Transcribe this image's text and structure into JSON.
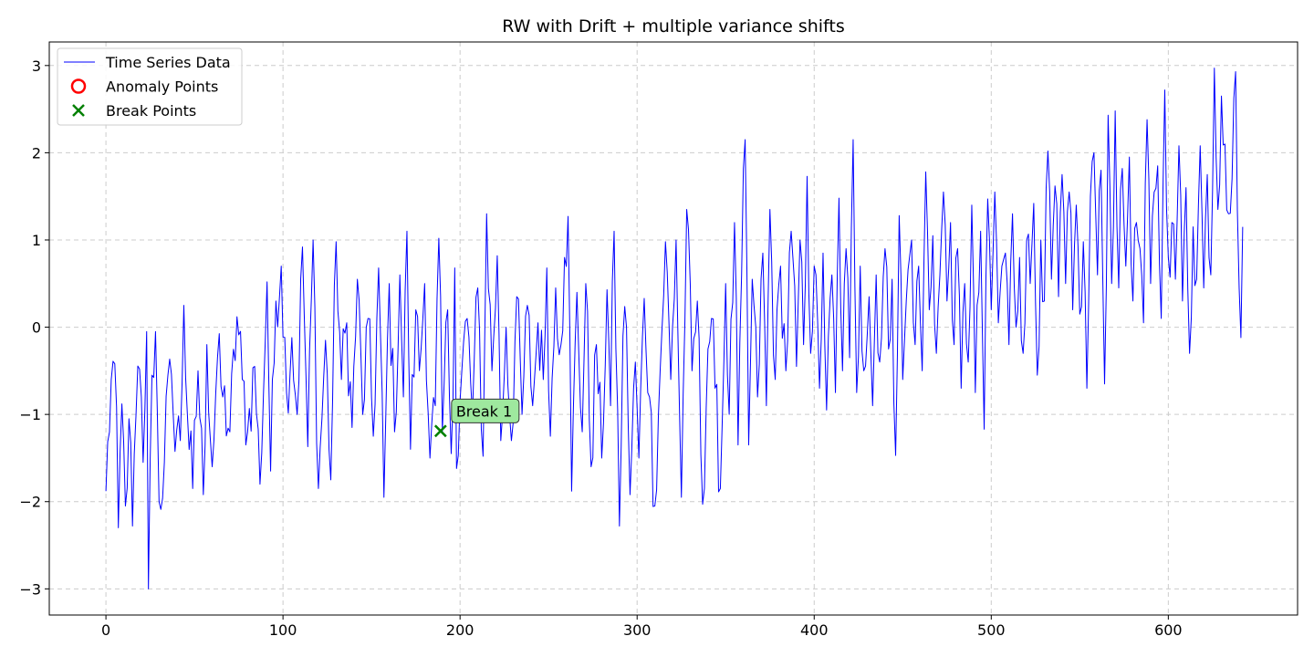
{
  "chart_data": {
    "type": "line",
    "title": "RW with Drift + multiple variance shifts",
    "xlabel": "",
    "ylabel": "",
    "xlim": [
      -32,
      673
    ],
    "ylim": [
      -3.3,
      3.27
    ],
    "xticks": [
      0,
      100,
      200,
      300,
      400,
      500,
      600
    ],
    "yticks": [
      -3,
      -2,
      -1,
      0,
      1,
      2,
      3
    ],
    "ytick_labels": [
      "−3",
      "−2",
      "−1",
      "0",
      "1",
      "2",
      "3"
    ],
    "grid": true,
    "legend_position": "top-left",
    "legend": [
      {
        "label": "Time Series Data",
        "kind": "line",
        "color": "#0000ff"
      },
      {
        "label": "Anomaly Points",
        "kind": "circle",
        "color": "#ff0000"
      },
      {
        "label": "Break Points",
        "kind": "x",
        "color": "#008000"
      }
    ],
    "series": [
      {
        "name": "Time Series Data",
        "color": "#0000ff",
        "anchors": [
          [
            0,
            -1.88
          ],
          [
            3,
            -0.6
          ],
          [
            5,
            -0.42
          ],
          [
            7,
            -2.3
          ],
          [
            9,
            -0.88
          ],
          [
            11,
            -2.05
          ],
          [
            13,
            -1.05
          ],
          [
            15,
            -2.28
          ],
          [
            17,
            -1.0
          ],
          [
            19,
            -0.48
          ],
          [
            21,
            -1.55
          ],
          [
            23,
            -0.05
          ],
          [
            24,
            -3.0
          ],
          [
            26,
            -0.55
          ],
          [
            28,
            -0.05
          ],
          [
            30,
            -2.0
          ],
          [
            33,
            -1.55
          ],
          [
            35,
            -0.55
          ],
          [
            38,
            -1.0
          ],
          [
            42,
            -1.3
          ],
          [
            44,
            0.25
          ],
          [
            46,
            -1.0
          ],
          [
            49,
            -1.85
          ],
          [
            52,
            -0.5
          ],
          [
            55,
            -1.92
          ],
          [
            57,
            -0.2
          ],
          [
            60,
            -1.6
          ],
          [
            63,
            -0.35
          ],
          [
            66,
            -0.8
          ],
          [
            70,
            -1.2
          ],
          [
            74,
            0.12
          ],
          [
            77,
            -0.6
          ],
          [
            80,
            -1.2
          ],
          [
            84,
            -0.45
          ],
          [
            87,
            -1.8
          ],
          [
            91,
            0.52
          ],
          [
            93,
            -1.65
          ],
          [
            96,
            0.3
          ],
          [
            99,
            0.7
          ],
          [
            102,
            -0.75
          ],
          [
            105,
            -0.12
          ],
          [
            108,
            -1.0
          ],
          [
            111,
            0.92
          ],
          [
            114,
            -1.37
          ],
          [
            117,
            1.0
          ],
          [
            120,
            -1.85
          ],
          [
            124,
            -0.15
          ],
          [
            127,
            -1.75
          ],
          [
            130,
            0.98
          ],
          [
            133,
            -0.6
          ],
          [
            136,
            0.05
          ],
          [
            139,
            -1.15
          ],
          [
            142,
            0.55
          ],
          [
            145,
            -1.0
          ],
          [
            148,
            0.1
          ],
          [
            151,
            -1.25
          ],
          [
            154,
            0.68
          ],
          [
            157,
            -1.95
          ],
          [
            160,
            0.5
          ],
          [
            163,
            -1.2
          ],
          [
            166,
            0.6
          ],
          [
            168,
            -0.8
          ],
          [
            170,
            1.1
          ],
          [
            172,
            -1.4
          ],
          [
            175,
            0.2
          ],
          [
            177,
            -0.5
          ],
          [
            180,
            0.5
          ],
          [
            183,
            -1.5
          ],
          [
            186,
            -0.9
          ],
          [
            188,
            1.02
          ],
          [
            190,
            -1.2
          ],
          [
            193,
            0.2
          ],
          [
            195,
            -1.45
          ],
          [
            197,
            0.68
          ],
          [
            198,
            -1.62
          ],
          [
            201,
            -0.5
          ],
          [
            204,
            0.1
          ],
          [
            207,
            -1.0
          ],
          [
            210,
            0.45
          ],
          [
            213,
            -1.48
          ],
          [
            215,
            1.3
          ],
          [
            218,
            -0.5
          ],
          [
            221,
            0.82
          ],
          [
            223,
            -1.3
          ],
          [
            226,
            0.0
          ],
          [
            229,
            -1.3
          ],
          [
            232,
            0.35
          ],
          [
            235,
            -1.0
          ],
          [
            238,
            0.25
          ],
          [
            241,
            -0.9
          ],
          [
            244,
            0.05
          ],
          [
            247,
            -0.6
          ],
          [
            249,
            0.68
          ],
          [
            251,
            -1.25
          ],
          [
            254,
            0.45
          ],
          [
            257,
            -0.2
          ],
          [
            259,
            0.8
          ],
          [
            261,
            1.27
          ],
          [
            263,
            -1.88
          ],
          [
            266,
            0.4
          ],
          [
            269,
            -1.2
          ],
          [
            271,
            0.5
          ],
          [
            274,
            -1.6
          ],
          [
            277,
            -0.2
          ],
          [
            280,
            -1.5
          ],
          [
            283,
            0.43
          ],
          [
            285,
            -0.9
          ],
          [
            287,
            1.1
          ],
          [
            290,
            -2.28
          ],
          [
            292,
            -0.1
          ],
          [
            294,
            0.0
          ],
          [
            296,
            -1.92
          ],
          [
            299,
            -0.4
          ],
          [
            301,
            -1.5
          ],
          [
            304,
            0.33
          ],
          [
            307,
            -0.8
          ],
          [
            310,
            -2.05
          ],
          [
            313,
            -0.5
          ],
          [
            316,
            0.98
          ],
          [
            319,
            -0.6
          ],
          [
            322,
            1.0
          ],
          [
            325,
            -1.95
          ],
          [
            328,
            1.35
          ],
          [
            331,
            -0.5
          ],
          [
            334,
            0.3
          ],
          [
            337,
            -2.03
          ],
          [
            340,
            -0.25
          ],
          [
            342,
            0.1
          ],
          [
            344,
            -0.7
          ],
          [
            347,
            -1.85
          ],
          [
            350,
            0.5
          ],
          [
            352,
            -1.0
          ],
          [
            355,
            1.2
          ],
          [
            357,
            -1.35
          ],
          [
            359,
            0.6
          ],
          [
            361,
            2.15
          ],
          [
            363,
            -1.35
          ],
          [
            365,
            0.55
          ],
          [
            368,
            -0.8
          ],
          [
            371,
            0.85
          ],
          [
            373,
            -0.9
          ],
          [
            375,
            1.35
          ],
          [
            378,
            -0.6
          ],
          [
            381,
            0.7
          ],
          [
            384,
            -0.5
          ],
          [
            387,
            1.1
          ],
          [
            390,
            -0.45
          ],
          [
            392,
            1.0
          ],
          [
            394,
            -0.2
          ],
          [
            396,
            1.73
          ],
          [
            398,
            -0.3
          ],
          [
            400,
            0.7
          ],
          [
            403,
            -0.7
          ],
          [
            405,
            0.85
          ],
          [
            407,
            -0.95
          ],
          [
            410,
            0.6
          ],
          [
            412,
            -0.75
          ],
          [
            414,
            1.48
          ],
          [
            416,
            -0.5
          ],
          [
            418,
            0.9
          ],
          [
            420,
            -0.35
          ],
          [
            422,
            2.15
          ],
          [
            424,
            -0.75
          ],
          [
            426,
            0.7
          ],
          [
            428,
            -0.5
          ],
          [
            431,
            0.35
          ],
          [
            433,
            -0.9
          ],
          [
            435,
            0.6
          ],
          [
            437,
            -0.4
          ],
          [
            440,
            0.9
          ],
          [
            442,
            -0.25
          ],
          [
            444,
            0.55
          ],
          [
            446,
            -1.47
          ],
          [
            448,
            1.28
          ],
          [
            450,
            -0.6
          ],
          [
            452,
            0.3
          ],
          [
            455,
            1.0
          ],
          [
            457,
            -0.2
          ],
          [
            459,
            0.7
          ],
          [
            461,
            -0.5
          ],
          [
            463,
            1.78
          ],
          [
            465,
            0.2
          ],
          [
            467,
            1.05
          ],
          [
            469,
            -0.3
          ],
          [
            471,
            0.6
          ],
          [
            473,
            1.55
          ],
          [
            475,
            0.3
          ],
          [
            477,
            1.2
          ],
          [
            479,
            -0.2
          ],
          [
            481,
            0.9
          ],
          [
            483,
            -0.7
          ],
          [
            485,
            0.5
          ],
          [
            487,
            -0.4
          ],
          [
            489,
            1.4
          ],
          [
            491,
            -0.75
          ],
          [
            494,
            1.1
          ],
          [
            496,
            -1.17
          ],
          [
            498,
            1.47
          ],
          [
            500,
            0.2
          ],
          [
            502,
            1.55
          ],
          [
            504,
            0.05
          ],
          [
            506,
            0.7
          ],
          [
            508,
            0.85
          ],
          [
            510,
            -0.2
          ],
          [
            512,
            1.3
          ],
          [
            514,
            0.0
          ],
          [
            516,
            0.8
          ],
          [
            518,
            -0.3
          ],
          [
            520,
            1.0
          ],
          [
            522,
            0.5
          ],
          [
            524,
            1.42
          ],
          [
            526,
            -0.55
          ],
          [
            528,
            1.0
          ],
          [
            530,
            0.3
          ],
          [
            532,
            2.02
          ],
          [
            534,
            0.55
          ],
          [
            536,
            1.62
          ],
          [
            538,
            0.35
          ],
          [
            540,
            1.75
          ],
          [
            542,
            0.5
          ],
          [
            544,
            1.55
          ],
          [
            546,
            0.2
          ],
          [
            548,
            1.4
          ],
          [
            550,
            0.15
          ],
          [
            552,
            0.98
          ],
          [
            554,
            -0.7
          ],
          [
            556,
            1.5
          ],
          [
            558,
            2.0
          ],
          [
            560,
            0.6
          ],
          [
            562,
            1.8
          ],
          [
            564,
            -0.65
          ],
          [
            566,
            2.43
          ],
          [
            568,
            0.5
          ],
          [
            570,
            2.48
          ],
          [
            572,
            0.45
          ],
          [
            574,
            1.82
          ],
          [
            576,
            0.7
          ],
          [
            578,
            1.95
          ],
          [
            580,
            0.3
          ],
          [
            582,
            1.2
          ],
          [
            584,
            0.9
          ],
          [
            586,
            0.05
          ],
          [
            588,
            2.38
          ],
          [
            590,
            0.5
          ],
          [
            592,
            1.55
          ],
          [
            594,
            1.85
          ],
          [
            596,
            0.1
          ],
          [
            598,
            2.72
          ],
          [
            600,
            0.8
          ],
          [
            602,
            1.2
          ],
          [
            604,
            0.55
          ],
          [
            606,
            2.08
          ],
          [
            608,
            0.3
          ],
          [
            610,
            1.6
          ],
          [
            612,
            -0.3
          ],
          [
            614,
            1.15
          ],
          [
            616,
            0.55
          ],
          [
            618,
            2.08
          ],
          [
            620,
            0.45
          ],
          [
            622,
            1.75
          ],
          [
            624,
            0.6
          ],
          [
            626,
            2.97
          ],
          [
            628,
            1.35
          ],
          [
            630,
            2.65
          ],
          [
            632,
            2.1
          ],
          [
            634,
            1.3
          ],
          [
            636,
            1.7
          ],
          [
            638,
            2.93
          ],
          [
            640,
            0.45
          ],
          [
            641,
            -0.12
          ],
          [
            642,
            1.15
          ]
        ]
      }
    ],
    "anomaly_points": [],
    "break_points": [
      {
        "x": 189,
        "y": -1.19,
        "label": "Break 1"
      }
    ]
  }
}
